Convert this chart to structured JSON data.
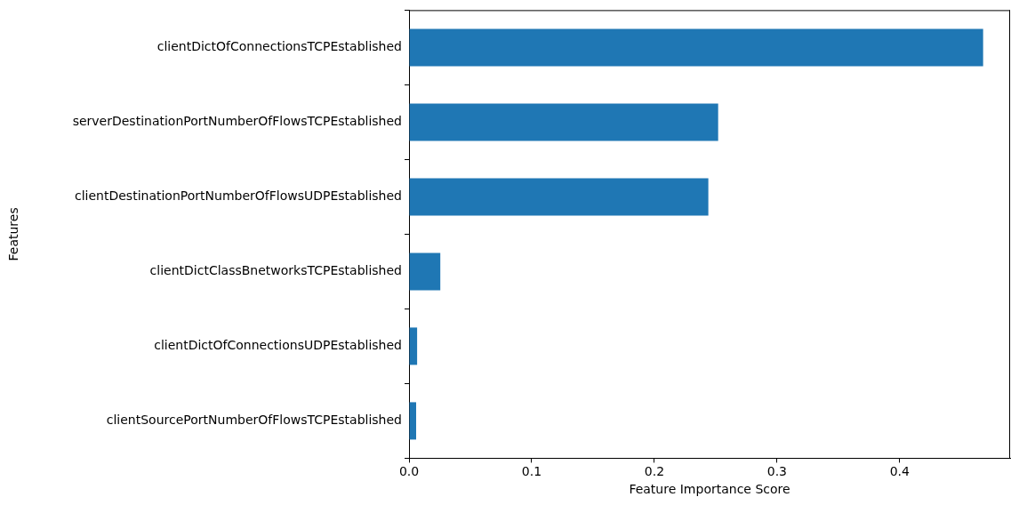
{
  "chart_data": {
    "type": "bar",
    "orientation": "horizontal",
    "xlabel": "Feature Importance Score",
    "ylabel": "Features",
    "categories": [
      "clientDictOfConnectionsTCPEstablished",
      "serverDestinationPortNumberOfFlowsTCPEstablished",
      "clientDestinationPortNumberOfFlowsUDPEstablished",
      "clientDictClassBnetworksTCPEstablished",
      "clientDictOfConnectionsUDPEstablished",
      "clientSourcePortNumberOfFlowsTCPEstablished"
    ],
    "values": [
      0.468,
      0.252,
      0.244,
      0.0255,
      0.0066,
      0.0058
    ],
    "color": "#1f77b4",
    "xlim": [
      0,
      0.49
    ],
    "xticks": [
      {
        "value": 0,
        "label": "0.0"
      },
      0.1,
      0.2,
      0.3,
      0.4
    ],
    "grid": false,
    "legend": false
  }
}
